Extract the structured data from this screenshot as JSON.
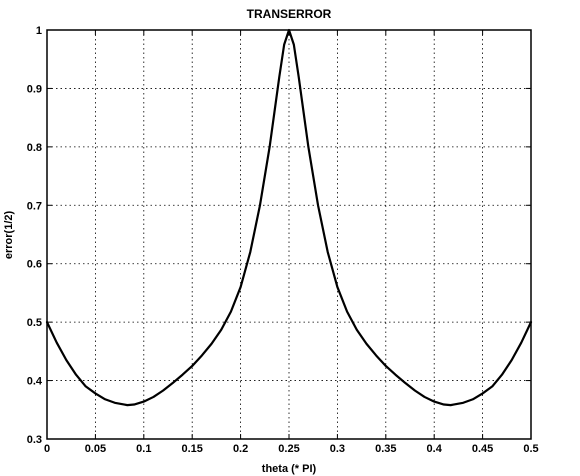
{
  "chart_data": {
    "type": "line",
    "title": "TRANSERROR",
    "xlabel": "theta (* PI)",
    "ylabel": "error(1/2)",
    "xlim": [
      0,
      0.5
    ],
    "ylim": [
      0.3,
      1
    ],
    "grid": true,
    "x_ticks": [
      "0",
      "0.05",
      "0.1",
      "0.15",
      "0.2",
      "0.25",
      "0.3",
      "0.35",
      "0.4",
      "0.45",
      "0.5"
    ],
    "y_ticks": [
      "0.3",
      "0.4",
      "0.5",
      "0.6",
      "0.7",
      "0.8",
      "0.9",
      "1"
    ],
    "series": [
      {
        "color": "#000000",
        "x": [
          0,
          0.01,
          0.02,
          0.03,
          0.04,
          0.05,
          0.06,
          0.07,
          0.08,
          0.083,
          0.09,
          0.1,
          0.11,
          0.12,
          0.13,
          0.14,
          0.15,
          0.16,
          0.17,
          0.18,
          0.19,
          0.2,
          0.21,
          0.22,
          0.23,
          0.235,
          0.24,
          0.245,
          0.25,
          0.255,
          0.26,
          0.265,
          0.27,
          0.28,
          0.29,
          0.3,
          0.31,
          0.32,
          0.33,
          0.34,
          0.35,
          0.36,
          0.37,
          0.38,
          0.39,
          0.4,
          0.41,
          0.417,
          0.42,
          0.43,
          0.44,
          0.45,
          0.46,
          0.47,
          0.48,
          0.49,
          0.5
        ],
        "values": [
          0.5,
          0.465,
          0.435,
          0.41,
          0.39,
          0.378,
          0.368,
          0.362,
          0.359,
          0.358,
          0.359,
          0.364,
          0.372,
          0.383,
          0.396,
          0.41,
          0.425,
          0.443,
          0.463,
          0.487,
          0.518,
          0.56,
          0.62,
          0.7,
          0.8,
          0.86,
          0.92,
          0.975,
          1.0,
          0.975,
          0.92,
          0.86,
          0.8,
          0.7,
          0.62,
          0.56,
          0.518,
          0.487,
          0.463,
          0.443,
          0.425,
          0.41,
          0.396,
          0.383,
          0.372,
          0.364,
          0.359,
          0.358,
          0.359,
          0.362,
          0.368,
          0.378,
          0.39,
          0.41,
          0.435,
          0.465,
          0.5
        ]
      }
    ]
  }
}
